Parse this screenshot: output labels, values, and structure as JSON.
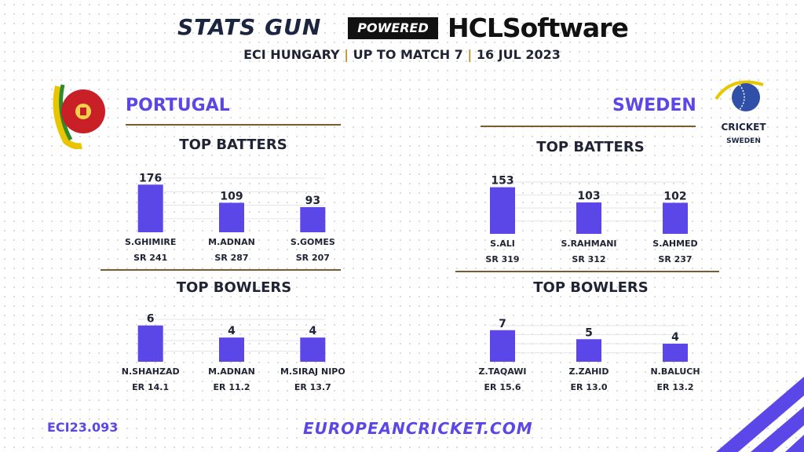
{
  "header": {
    "brand_title": "STATS GUN",
    "powered_label": "POWERED BY",
    "sponsor": "HCLSoftware",
    "subtitle_parts": [
      "ECI HUNGARY",
      "UP TO MATCH 7",
      "16 JUL 2023"
    ],
    "separator": "|"
  },
  "teams": {
    "left": {
      "name": "PORTUGAL"
    },
    "right": {
      "name": "SWEDEN",
      "logo_text_1": "CRICKET",
      "logo_text_2": "SWEDEN"
    }
  },
  "labels": {
    "top_batters": "TOP BATTERS",
    "top_bowlers": "TOP BOWLERS"
  },
  "footer": {
    "code": "ECI23.093",
    "url": "EUROPEANCRICKET.COM"
  },
  "colors": {
    "bar": "#5b47e8",
    "accent": "#5b47e8",
    "rule": "#7a5a2e",
    "dark": "#1f2333"
  },
  "chart_data": [
    {
      "id": "portugal-batters",
      "type": "bar",
      "title": "TOP BATTERS",
      "categories": [
        "S.GHIMIRE",
        "M.ADNAN",
        "S.GOMES"
      ],
      "values": [
        176,
        109,
        93
      ],
      "sublabels": [
        "SR 241",
        "SR 287",
        "SR 207"
      ],
      "ylim": [
        0,
        200
      ]
    },
    {
      "id": "portugal-bowlers",
      "type": "bar",
      "title": "TOP BOWLERS",
      "categories": [
        "N.SHAHZAD",
        "M.ADNAN",
        "M.SIRAJ NIPO"
      ],
      "values": [
        6,
        4,
        4
      ],
      "sublabels": [
        "ER 14.1",
        "ER 11.2",
        "ER 13.7"
      ],
      "ylim": [
        0,
        7
      ]
    },
    {
      "id": "sweden-batters",
      "type": "bar",
      "title": "TOP BATTERS",
      "categories": [
        "S.ALI",
        "S.RAHMANI",
        "S.AHMED"
      ],
      "values": [
        153,
        103,
        102
      ],
      "sublabels": [
        "SR 319",
        "SR 312",
        "SR 237"
      ],
      "ylim": [
        0,
        170
      ]
    },
    {
      "id": "sweden-bowlers",
      "type": "bar",
      "title": "TOP BOWLERS",
      "categories": [
        "Z.TAQAWI",
        "Z.ZAHID",
        "N.BALUCH"
      ],
      "values": [
        7,
        5,
        4
      ],
      "sublabels": [
        "ER 15.6",
        "ER 13.0",
        "ER 13.2"
      ],
      "ylim": [
        0,
        8
      ]
    }
  ]
}
